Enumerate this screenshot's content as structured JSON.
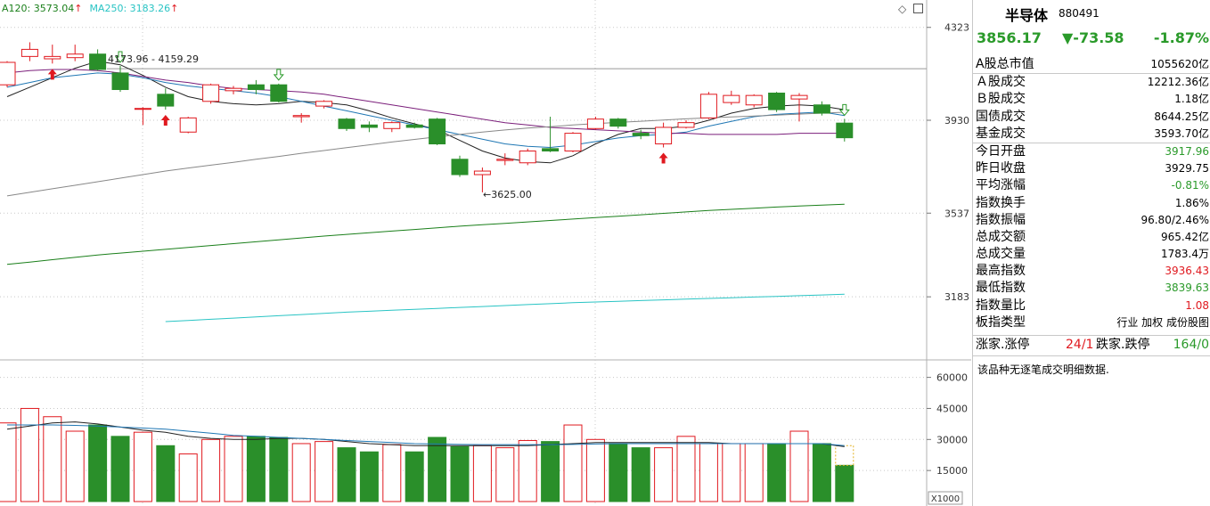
{
  "indicator_legend": {
    "ma120": "A120: 3573.04",
    "ma250": "MA250: 3183.26",
    "up_arrow": "↑"
  },
  "toolbar": {
    "diamond_icon": "diamond-icon",
    "window_icon": "window-icon"
  },
  "colors": {
    "up": "#e0191f",
    "down": "#2a8f2a",
    "ma_black": "#222222",
    "ma_blue": "#1f77b4",
    "ma_purple": "#7b1f7b",
    "ma_gray": "#888888",
    "ma120": "#1a7f1a",
    "ma250": "#29c4c4"
  },
  "annotations": {
    "high": "4173.96 - 4159.29",
    "low": "3625.00"
  },
  "volume_unit": "X1000",
  "panel": {
    "name": "半导体",
    "code": "880491",
    "price": "3856.17",
    "change": "▼-73.58",
    "pct": "-1.87%",
    "rows": [
      {
        "label": "A股总市值",
        "value": "1055620亿",
        "color": ""
      },
      {
        "label": "Ａ股成交",
        "value": "12212.36亿",
        "color": ""
      },
      {
        "label": "Ｂ股成交",
        "value": "1.18亿",
        "color": ""
      },
      {
        "label": "国债成交",
        "value": "8644.25亿",
        "color": ""
      },
      {
        "label": "基金成交",
        "value": "3593.70亿",
        "color": ""
      },
      {
        "label": "今日开盘",
        "value": "3917.96",
        "color": "green"
      },
      {
        "label": "昨日收盘",
        "value": "3929.75",
        "color": ""
      },
      {
        "label": "平均涨幅",
        "value": "-0.81%",
        "color": "green"
      },
      {
        "label": "指数换手",
        "value": "1.86%",
        "color": ""
      },
      {
        "label": "指数振幅",
        "value": "96.80/2.46%",
        "color": ""
      },
      {
        "label": "总成交额",
        "value": "965.42亿",
        "color": ""
      },
      {
        "label": "总成交量",
        "value": "1783.4万",
        "color": ""
      },
      {
        "label": "最高指数",
        "value": "3936.43",
        "color": "red"
      },
      {
        "label": "最低指数",
        "value": "3839.63",
        "color": "green"
      },
      {
        "label": "指数量比",
        "value": "1.08",
        "color": "red"
      },
      {
        "label": "板指类型",
        "value": "行业 加权 成份股图",
        "color": ""
      }
    ],
    "limits": {
      "up_label": "涨家.涨停",
      "up_value": "24/1",
      "down_label": "跌家.跌停",
      "down_value": "164/0"
    },
    "note": "该品种无逐笔成交明细数据."
  },
  "chart_data": [
    {
      "type": "candlestick",
      "title": "",
      "ylim": [
        2950,
        4420
      ],
      "yticks": [
        4323,
        3930,
        3537,
        3183
      ],
      "series_legend": [
        "A120: 3573.04",
        "MA250: 3183.26"
      ],
      "candles": [
        {
          "o": 4080,
          "c": 4175,
          "h": 4180,
          "l": 4070
        },
        {
          "o": 4200,
          "c": 4230,
          "h": 4260,
          "l": 4180
        },
        {
          "o": 4190,
          "c": 4200,
          "h": 4250,
          "l": 4170
        },
        {
          "o": 4195,
          "c": 4210,
          "h": 4250,
          "l": 4180
        },
        {
          "o": 4210,
          "c": 4145,
          "h": 4230,
          "l": 4140
        },
        {
          "o": 4130,
          "c": 4060,
          "h": 4160,
          "l": 4050
        },
        {
          "o": 3980,
          "c": 3980,
          "h": 3985,
          "l": 3910
        },
        {
          "o": 4040,
          "c": 3990,
          "h": 4065,
          "l": 3975
        },
        {
          "o": 3880,
          "c": 3940,
          "h": 3945,
          "l": 3875
        },
        {
          "o": 4010,
          "c": 4080,
          "h": 4085,
          "l": 4000
        },
        {
          "o": 4055,
          "c": 4065,
          "h": 4075,
          "l": 4040
        },
        {
          "o": 4080,
          "c": 4060,
          "h": 4100,
          "l": 4040
        },
        {
          "o": 4080,
          "c": 4010,
          "h": 4085,
          "l": 4005
        },
        {
          "o": 3945,
          "c": 3950,
          "h": 3960,
          "l": 3920
        },
        {
          "o": 3990,
          "c": 4010,
          "h": 4015,
          "l": 3980
        },
        {
          "o": 3935,
          "c": 3895,
          "h": 3940,
          "l": 3885
        },
        {
          "o": 3910,
          "c": 3900,
          "h": 3925,
          "l": 3880
        },
        {
          "o": 3895,
          "c": 3920,
          "h": 3925,
          "l": 3880
        },
        {
          "o": 3910,
          "c": 3900,
          "h": 3920,
          "l": 3895
        },
        {
          "o": 3935,
          "c": 3830,
          "h": 3940,
          "l": 3825
        },
        {
          "o": 3765,
          "c": 3700,
          "h": 3780,
          "l": 3690
        },
        {
          "o": 3700,
          "c": 3715,
          "h": 3730,
          "l": 3625
        },
        {
          "o": 3760,
          "c": 3765,
          "h": 3790,
          "l": 3740
        },
        {
          "o": 3750,
          "c": 3800,
          "h": 3810,
          "l": 3740
        },
        {
          "o": 3810,
          "c": 3800,
          "h": 3945,
          "l": 3795
        },
        {
          "o": 3800,
          "c": 3875,
          "h": 3880,
          "l": 3795
        },
        {
          "o": 3895,
          "c": 3935,
          "h": 3945,
          "l": 3890
        },
        {
          "o": 3935,
          "c": 3905,
          "h": 3940,
          "l": 3895
        },
        {
          "o": 3875,
          "c": 3865,
          "h": 3890,
          "l": 3850
        },
        {
          "o": 3830,
          "c": 3900,
          "h": 3920,
          "l": 3815
        },
        {
          "o": 3900,
          "c": 3920,
          "h": 3930,
          "l": 3895
        },
        {
          "o": 3940,
          "c": 4040,
          "h": 4050,
          "l": 3935
        },
        {
          "o": 4005,
          "c": 4035,
          "h": 4055,
          "l": 3995
        },
        {
          "o": 3995,
          "c": 4035,
          "h": 4040,
          "l": 3985
        },
        {
          "o": 4045,
          "c": 3975,
          "h": 4050,
          "l": 3965
        },
        {
          "o": 4020,
          "c": 4035,
          "h": 4045,
          "l": 3925
        },
        {
          "o": 3995,
          "c": 3960,
          "h": 4010,
          "l": 3950
        },
        {
          "o": 3918,
          "c": 3856,
          "h": 3936,
          "l": 3840
        }
      ],
      "ma_lines": [
        {
          "name": "",
          "color": "ma_black",
          "values": [
            4030,
            4070,
            4110,
            4150,
            4180,
            4165,
            4120,
            4070,
            4030,
            4010,
            4000,
            3995,
            4000,
            4010,
            4005,
            3995,
            3970,
            3940,
            3915,
            3890,
            3845,
            3800,
            3770,
            3755,
            3750,
            3780,
            3830,
            3870,
            3895,
            3895,
            3905,
            3930,
            3960,
            3980,
            3990,
            3995,
            3990,
            3975
          ]
        },
        {
          "name": "",
          "color": "ma_blue",
          "values": [
            4070,
            4090,
            4110,
            4120,
            4130,
            4125,
            4110,
            4090,
            4075,
            4065,
            4055,
            4045,
            4030,
            4010,
            3990,
            3970,
            3950,
            3930,
            3910,
            3890,
            3870,
            3850,
            3830,
            3820,
            3815,
            3825,
            3840,
            3855,
            3865,
            3870,
            3880,
            3905,
            3925,
            3945,
            3955,
            3960,
            3965,
            3950
          ]
        },
        {
          "name": "",
          "color": "ma_purple",
          "values": [
            4130,
            4140,
            4145,
            4145,
            4140,
            4130,
            4115,
            4100,
            4090,
            4075,
            4065,
            4060,
            4055,
            4050,
            4040,
            4025,
            4010,
            3995,
            3980,
            3965,
            3950,
            3935,
            3920,
            3910,
            3900,
            3895,
            3890,
            3885,
            3880,
            3875,
            3875,
            3870,
            3870,
            3870,
            3870,
            3875,
            3875,
            3875
          ]
        },
        {
          "name": "",
          "color": "ma_gray",
          "values": [
            3610,
            3625,
            3640,
            3655,
            3670,
            3685,
            3700,
            3715,
            3728,
            3740,
            3752,
            3765,
            3777,
            3790,
            3802,
            3814,
            3826,
            3838,
            3849,
            3860,
            3870,
            3880,
            3889,
            3897,
            3903,
            3910,
            3916,
            3921,
            3926,
            3931,
            3936,
            3940,
            3944,
            3948,
            3952,
            3956,
            3960,
            3964
          ]
        },
        {
          "name": "A120",
          "color": "ma120",
          "values": [
            3320,
            3330,
            3340,
            3350,
            3360,
            3368,
            3376,
            3384,
            3392,
            3400,
            3408,
            3416,
            3424,
            3432,
            3440,
            3447,
            3454,
            3461,
            3468,
            3475,
            3482,
            3488,
            3494,
            3500,
            3506,
            3512,
            3518,
            3524,
            3530,
            3536,
            3542,
            3548,
            3553,
            3558,
            3563,
            3567,
            3571,
            3575
          ]
        },
        {
          "name": "MA250",
          "color": "ma250",
          "values": [
            null,
            null,
            null,
            null,
            null,
            null,
            null,
            3078,
            3083,
            3088,
            3093,
            3098,
            3103,
            3108,
            3113,
            3118,
            3122,
            3126,
            3130,
            3134,
            3138,
            3142,
            3146,
            3150,
            3154,
            3158,
            3161,
            3164,
            3167,
            3170,
            3173,
            3176,
            3179,
            3182,
            3185,
            3188,
            3191,
            3194
          ]
        }
      ],
      "arrows_up": [
        2,
        7,
        29
      ],
      "arrows_down_hollow": [
        5,
        12,
        37
      ]
    },
    {
      "type": "bar",
      "title": "",
      "ylabel": "X1000",
      "ylim": [
        0,
        65000
      ],
      "yticks": [
        60000,
        45000,
        30000,
        15000
      ],
      "values": [
        38000,
        45000,
        41000,
        34000,
        37000,
        31500,
        33500,
        27000,
        23000,
        30000,
        31500,
        31500,
        31000,
        28000,
        29000,
        26000,
        24000,
        27500,
        24000,
        31000,
        26500,
        27000,
        26000,
        29500,
        29000,
        37000,
        30000,
        28000,
        26000,
        26000,
        31500,
        28000,
        28000,
        28000,
        28000,
        34000,
        28000,
        17500
      ],
      "ma_lines": [
        {
          "name": "",
          "color": "ma_black",
          "values": [
            35000,
            36500,
            38000,
            38500,
            37500,
            36000,
            34500,
            33500,
            31500,
            30500,
            30000,
            30000,
            30500,
            30500,
            30000,
            29000,
            28000,
            27500,
            27000,
            27000,
            27000,
            27000,
            27000,
            27000,
            27500,
            28000,
            28500,
            28500,
            28500,
            28500,
            28500,
            28500,
            28000,
            28000,
            28000,
            28000,
            28000,
            26500
          ]
        },
        {
          "name": "",
          "color": "ma_blue",
          "values": [
            37000,
            37000,
            37000,
            36800,
            36500,
            36000,
            35500,
            35000,
            34000,
            33000,
            32000,
            31500,
            31000,
            30500,
            30000,
            29500,
            29000,
            28500,
            28000,
            27800,
            27600,
            27500,
            27500,
            27500,
            27500,
            27600,
            27800,
            28000,
            28000,
            28000,
            28000,
            28000,
            28000,
            28000,
            28000,
            28000,
            28000,
            27000
          ]
        }
      ]
    }
  ]
}
